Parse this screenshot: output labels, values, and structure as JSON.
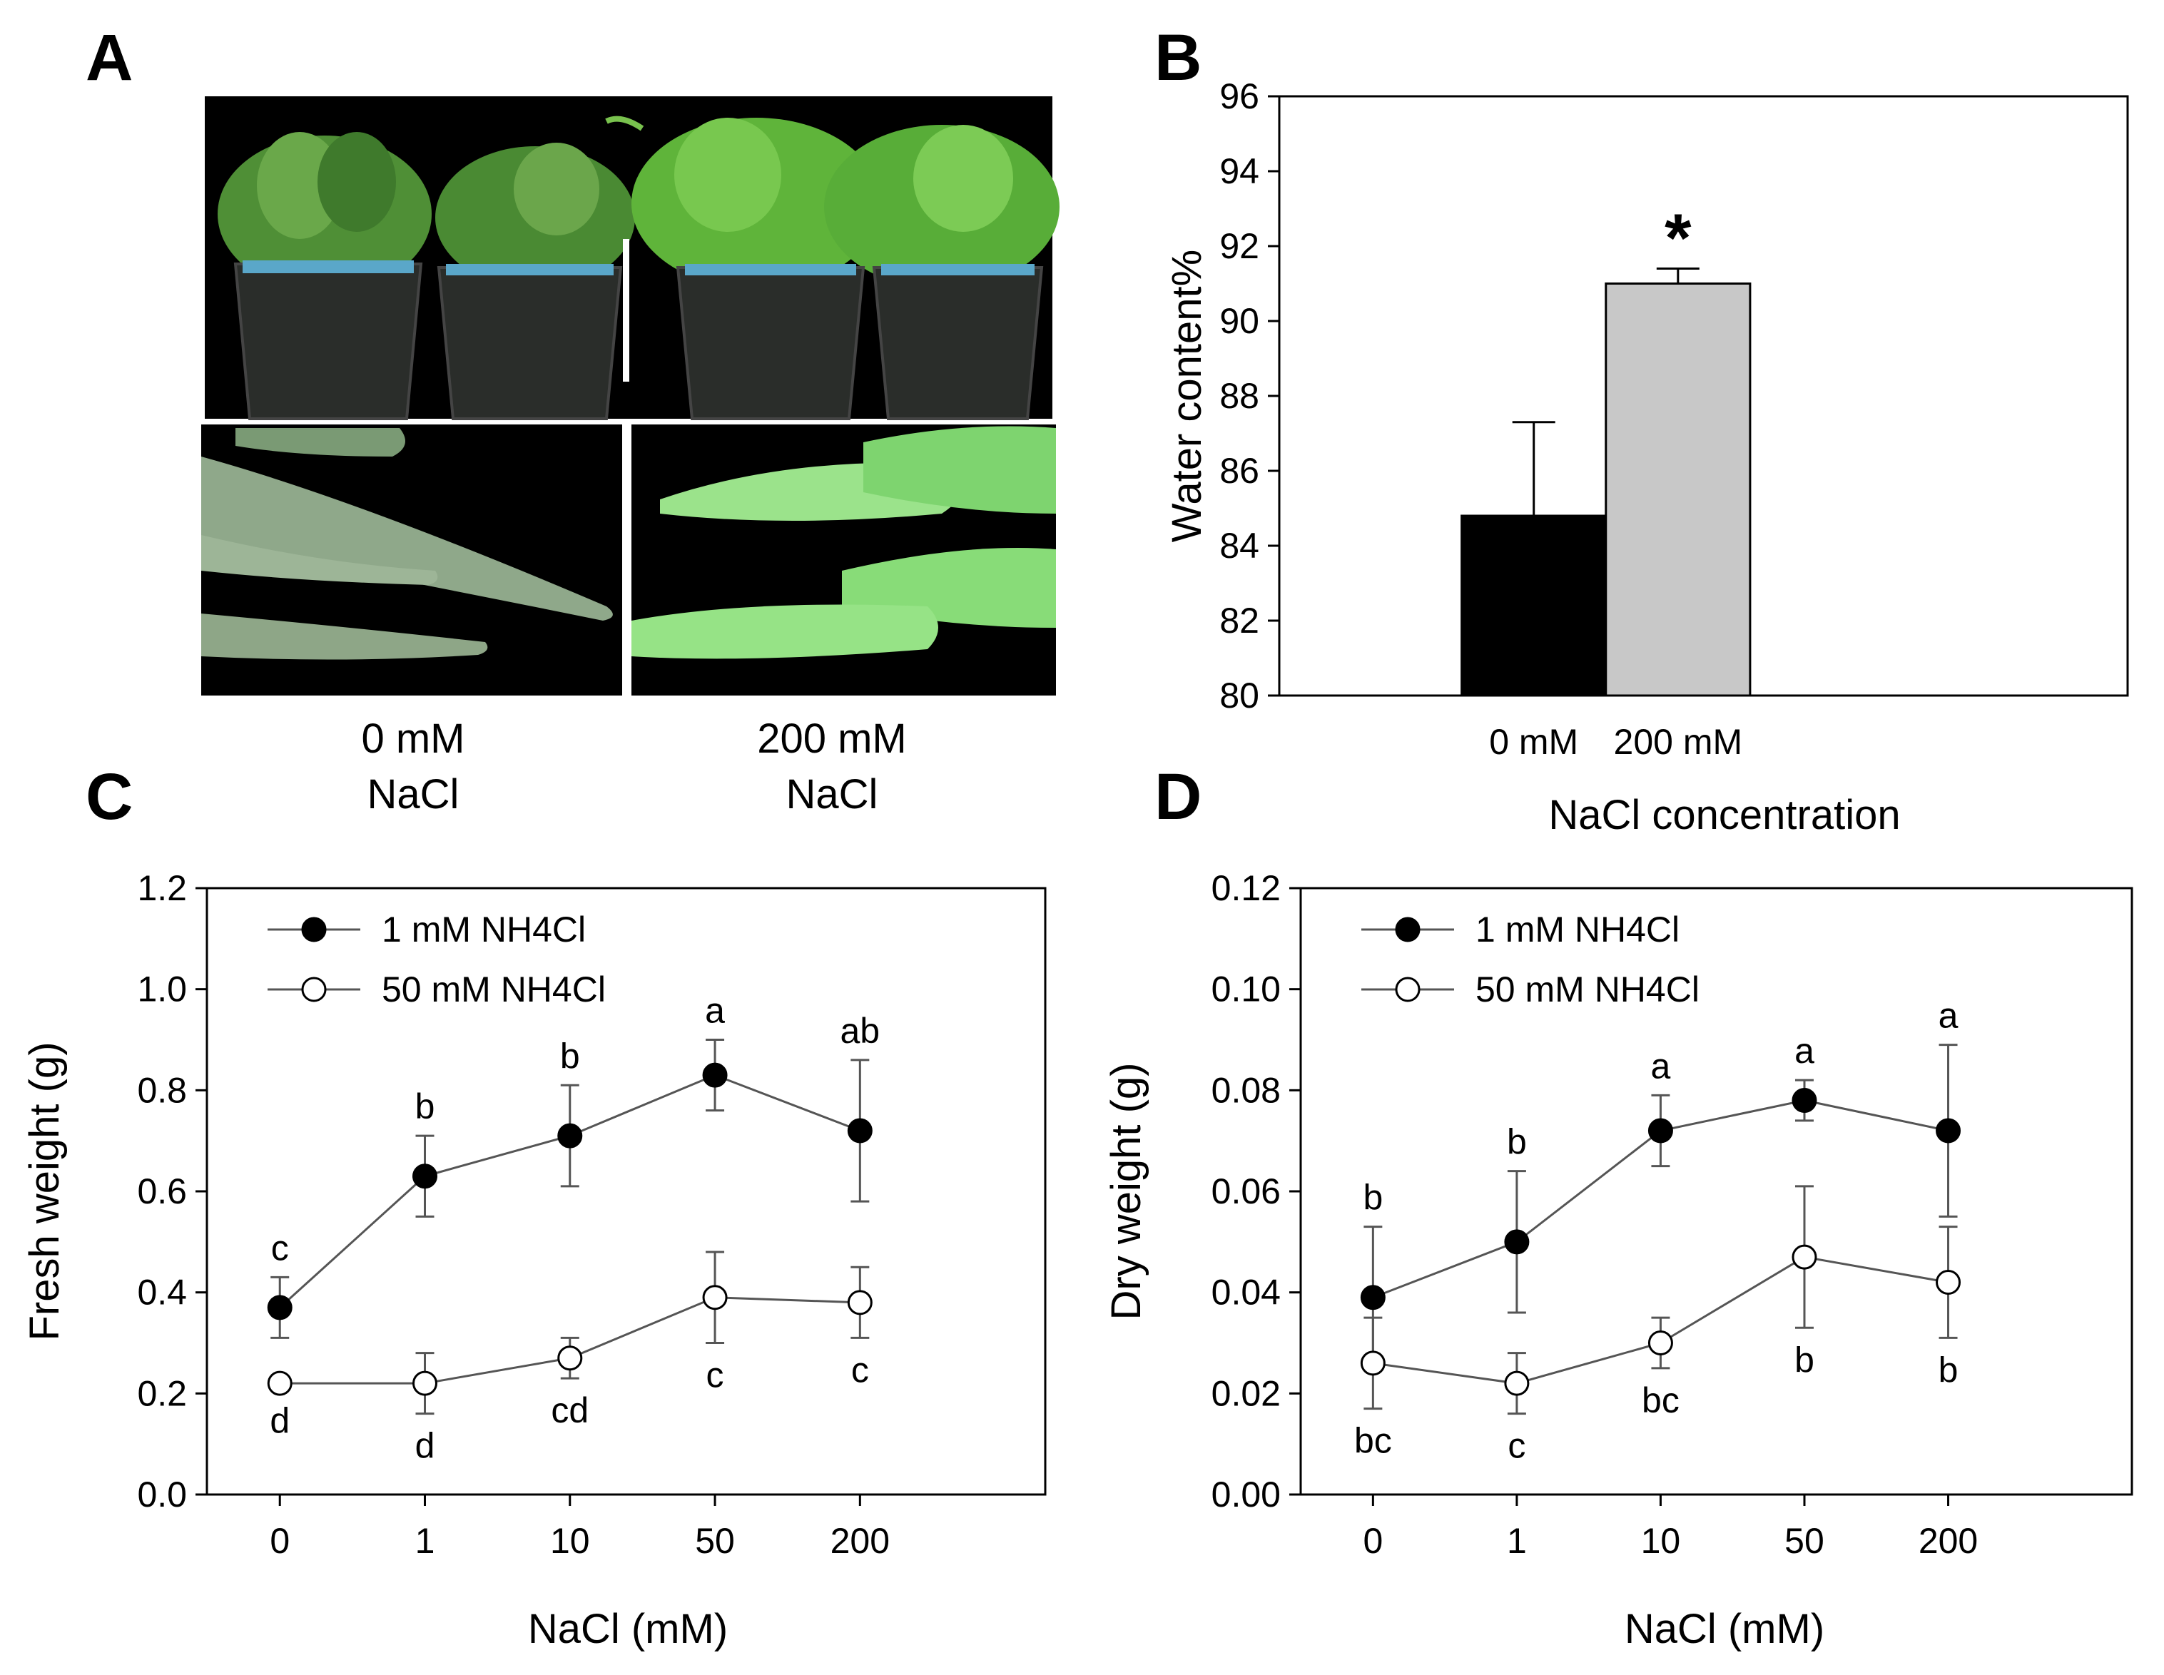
{
  "colors": {
    "series_filled": "#000000",
    "series_open": "#ffffff",
    "bar_control": "#000000",
    "bar_salt": "#c8c8c8",
    "photo_background": "#000000",
    "plant_green": "#5fbf3a",
    "shoot_green": "#8fe07a"
  },
  "panel_a": {
    "label": "A",
    "captions": [
      {
        "line1": "0 mM",
        "line2": "NaCl"
      },
      {
        "line1": "200 mM",
        "line2": "NaCl"
      }
    ]
  },
  "chart_data": [
    {
      "panel": "B",
      "type": "bar",
      "xlabel": "NaCl concentration",
      "ylabel": "Water content%",
      "ylim": [
        80,
        96
      ],
      "yticks": [
        80,
        82,
        84,
        86,
        88,
        90,
        92,
        94,
        96
      ],
      "categories": [
        "0 mM",
        "200 mM"
      ],
      "values": [
        84.8,
        91.0
      ],
      "errors": [
        2.5,
        0.4
      ],
      "annotations": [
        "",
        "*"
      ],
      "grid": false
    },
    {
      "panel": "C",
      "type": "line",
      "xlabel": "NaCl (mM)",
      "ylabel": "Fresh weight (g)",
      "ylim": [
        0.0,
        1.2
      ],
      "yticks": [
        "0.0",
        "0.2",
        "0.4",
        "0.6",
        "0.8",
        "1.0",
        "1.2"
      ],
      "x": [
        "0",
        "1",
        "10",
        "50",
        "200"
      ],
      "legend_position": "top-left",
      "grid": false,
      "series": [
        {
          "name": "1 mM NH4Cl",
          "marker": "filled",
          "values": [
            0.37,
            0.63,
            0.71,
            0.83,
            0.72
          ],
          "errors": [
            0.06,
            0.08,
            0.1,
            0.07,
            0.14
          ],
          "letters": [
            "c",
            "b",
            "b",
            "a",
            "ab"
          ]
        },
        {
          "name": "50 mM NH4Cl",
          "marker": "open",
          "values": [
            0.22,
            0.22,
            0.27,
            0.39,
            0.38
          ],
          "errors": [
            0.01,
            0.06,
            0.04,
            0.09,
            0.07
          ],
          "letters": [
            "d",
            "d",
            "cd",
            "c",
            "c"
          ]
        }
      ]
    },
    {
      "panel": "D",
      "type": "line",
      "xlabel": "NaCl (mM)",
      "ylabel": "Dry weight (g)",
      "ylim": [
        0.0,
        0.12
      ],
      "yticks": [
        "0.00",
        "0.02",
        "0.04",
        "0.06",
        "0.08",
        "0.10",
        "0.12"
      ],
      "x": [
        "0",
        "1",
        "10",
        "50",
        "200"
      ],
      "legend_position": "top-left",
      "grid": false,
      "series": [
        {
          "name": "1 mM NH4Cl",
          "marker": "filled",
          "values": [
            0.039,
            0.05,
            0.072,
            0.078,
            0.072
          ],
          "errors": [
            0.014,
            0.014,
            0.007,
            0.004,
            0.017
          ],
          "letters": [
            "b",
            "b",
            "a",
            "a",
            "a"
          ]
        },
        {
          "name": "50 mM NH4Cl",
          "marker": "open",
          "values": [
            0.026,
            0.022,
            0.03,
            0.047,
            0.042
          ],
          "errors": [
            0.009,
            0.006,
            0.005,
            0.014,
            0.011
          ],
          "letters": [
            "bc",
            "c",
            "bc",
            "b",
            "b"
          ]
        }
      ]
    }
  ]
}
